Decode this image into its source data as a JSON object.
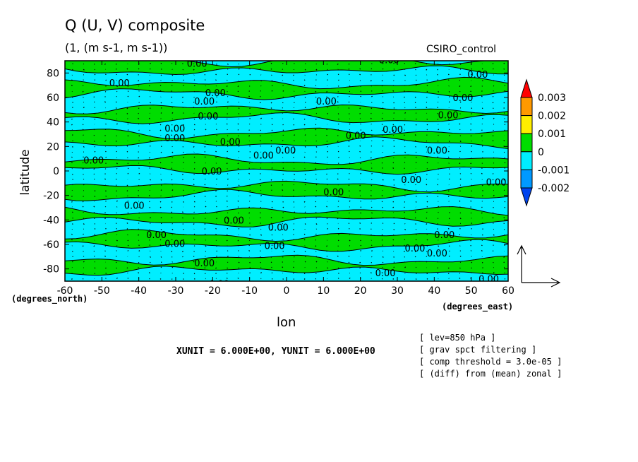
{
  "chart_data": {
    "type": "contour",
    "title": "Q (U, V) composite",
    "subtitle": "(1, (m s-1, m s-1))",
    "model_label": "CSIRO_control",
    "xlabel": "lon",
    "ylabel": "latitude",
    "x_unit_label": "(degrees_east)",
    "y_unit_label": "(degrees_north)",
    "xlim": [
      -60,
      60
    ],
    "ylim": [
      -90,
      90
    ],
    "x_ticks": [
      "-60",
      "-50",
      "-40",
      "-30",
      "-20",
      "-10",
      "0",
      "10",
      "20",
      "30",
      "40",
      "50",
      "60"
    ],
    "y_ticks": [
      "80",
      "60",
      "40",
      "20",
      "0",
      "-20",
      "-40",
      "-60",
      "-80"
    ],
    "colorbar": {
      "levels": [
        "0.003",
        "0.002",
        "0.001",
        "0",
        "-0.001",
        "-0.002"
      ],
      "colors": [
        "#ff0000",
        "#ff9900",
        "#ffee00",
        "#00dd00",
        "#00eeff",
        "#0099ff",
        "#0044ee"
      ]
    },
    "contour_label": "0.00",
    "bands": [
      {
        "lat": 86,
        "sign": 1
      },
      {
        "lat": 77,
        "sign": -1
      },
      {
        "lat": 67,
        "sign": 1
      },
      {
        "lat": 57,
        "sign": -1
      },
      {
        "lat": 47,
        "sign": 1
      },
      {
        "lat": 37,
        "sign": -1
      },
      {
        "lat": 27,
        "sign": 1
      },
      {
        "lat": 16,
        "sign": -1
      },
      {
        "lat": 5,
        "sign": 1
      },
      {
        "lat": -6,
        "sign": -1
      },
      {
        "lat": -16,
        "sign": 1
      },
      {
        "lat": -27,
        "sign": -1
      },
      {
        "lat": -37,
        "sign": 1
      },
      {
        "lat": -47,
        "sign": -1
      },
      {
        "lat": -57,
        "sign": 1
      },
      {
        "lat": -67,
        "sign": -1
      },
      {
        "lat": -77,
        "sign": 1
      },
      {
        "lat": -86,
        "sign": -1
      }
    ],
    "labels_at": [
      [
        -27,
        88
      ],
      [
        -48,
        72
      ],
      [
        -22,
        64
      ],
      [
        -25,
        57
      ],
      [
        -24,
        45
      ],
      [
        -33,
        35
      ],
      [
        -33,
        27
      ],
      [
        -18,
        24
      ],
      [
        -9,
        13
      ],
      [
        -3,
        17
      ],
      [
        -55,
        9
      ],
      [
        -23,
        0
      ],
      [
        26,
        34
      ],
      [
        25,
        91
      ],
      [
        16,
        29
      ],
      [
        8,
        57
      ],
      [
        49,
        79
      ],
      [
        45,
        60
      ],
      [
        41,
        46
      ],
      [
        38,
        17
      ],
      [
        31,
        -7
      ],
      [
        54,
        -9
      ],
      [
        10,
        -17
      ],
      [
        -44,
        -28
      ],
      [
        -17,
        -40
      ],
      [
        -5,
        -46
      ],
      [
        -38,
        -52
      ],
      [
        -33,
        -59
      ],
      [
        -6,
        -61
      ],
      [
        40,
        -52
      ],
      [
        32,
        -63
      ],
      [
        38,
        -67
      ],
      [
        -25,
        -75
      ],
      [
        -21,
        -92
      ],
      [
        24,
        -83
      ],
      [
        52,
        -88
      ]
    ],
    "vector_reference": {
      "xunit": "6.000E+00",
      "yunit": "6.000E+00"
    },
    "annotations": [
      "XUNIT = 6.000E+00, YUNIT = 6.000E+00",
      "[ lev=850 hPa ]",
      "[ grav spct filtering ]",
      "[ comp threshold = 3.0e-05 ]",
      "[ (diff) from (mean) zonal ]"
    ]
  }
}
